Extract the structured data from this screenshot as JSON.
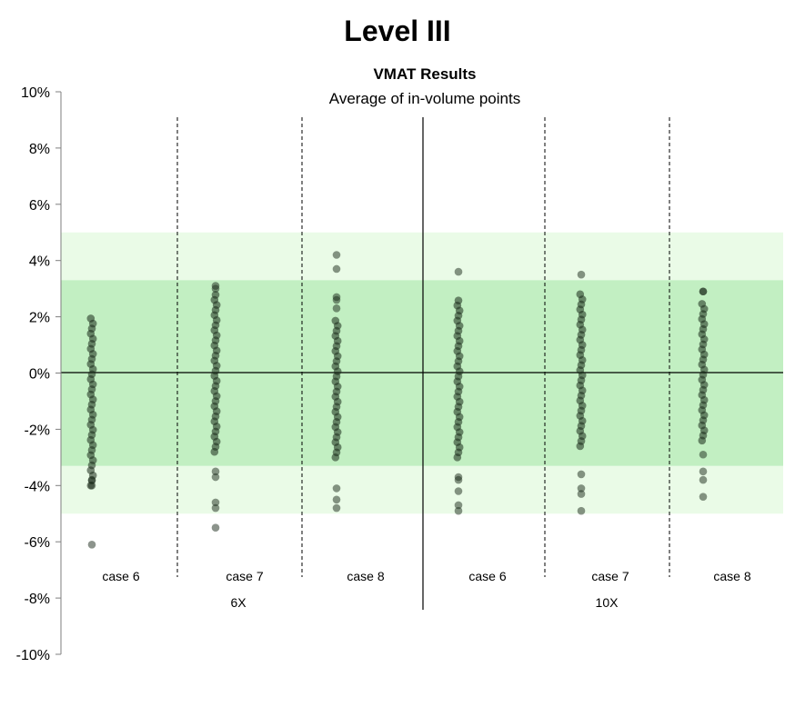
{
  "page_title": "Level III",
  "chart_data": {
    "type": "scatter",
    "title": "VMAT Results",
    "subtitle": "Average of in-volume points",
    "ylim": [
      -0.1,
      0.1
    ],
    "y_ticks": [
      "10%",
      "8%",
      "6%",
      "4%",
      "2%",
      "0%",
      "-2%",
      "-4%",
      "-6%",
      "-8%",
      "-10%"
    ],
    "y_tick_values": [
      0.1,
      0.08,
      0.06,
      0.04,
      0.02,
      0.0,
      -0.02,
      -0.04,
      -0.06,
      -0.08,
      -0.1
    ],
    "bands": [
      {
        "from": -0.05,
        "to": 0.05,
        "color": "#eafbe7"
      },
      {
        "from": -0.033,
        "to": 0.033,
        "color": "#c2efc2"
      }
    ],
    "point_color": "#1a2a1a",
    "groups": [
      "6X",
      "10X"
    ],
    "categories": [
      "case 6",
      "case 7",
      "case 8",
      "case 6",
      "case 7",
      "case 8"
    ],
    "series": [
      {
        "group": "6X",
        "category": "case 6",
        "range": [
          -0.04,
          0.02
        ],
        "outliers": [
          -0.04,
          -0.038,
          -0.061
        ]
      },
      {
        "group": "6X",
        "category": "case 7",
        "range": [
          -0.028,
          0.029
        ],
        "outliers": [
          0.031,
          0.03,
          -0.035,
          -0.037,
          -0.046,
          -0.048,
          -0.055
        ]
      },
      {
        "group": "6X",
        "category": "case 8",
        "range": [
          -0.03,
          0.02
        ],
        "outliers": [
          0.042,
          0.037,
          0.027,
          0.026,
          0.023,
          -0.041,
          -0.045,
          -0.048
        ]
      },
      {
        "group": "10X",
        "category": "case 6",
        "range": [
          -0.03,
          0.026
        ],
        "outliers": [
          0.036,
          -0.037,
          -0.038,
          -0.042,
          -0.047,
          -0.049
        ]
      },
      {
        "group": "10X",
        "category": "case 7",
        "range": [
          -0.026,
          0.029
        ],
        "outliers": [
          0.035,
          -0.036,
          -0.041,
          -0.043,
          -0.049
        ]
      },
      {
        "group": "10X",
        "category": "case 8",
        "range": [
          -0.024,
          0.025
        ],
        "outliers": [
          0.029,
          0.029,
          -0.029,
          -0.035,
          -0.038,
          -0.044
        ]
      }
    ],
    "grid": false,
    "legend": "none"
  }
}
